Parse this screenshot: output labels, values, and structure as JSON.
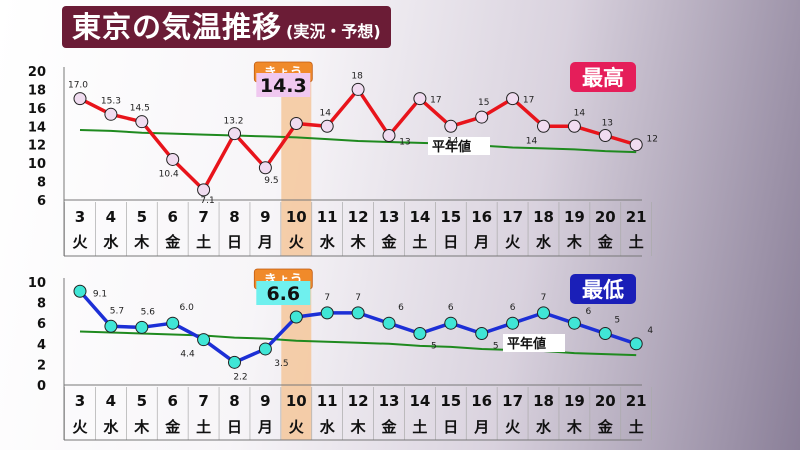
{
  "title": "東京の気温推移",
  "subtitle": "(実況・予想)",
  "chart_data": [
    {
      "type": "line",
      "label": "最高",
      "today_label": "きょう",
      "today_index": 7,
      "today_value_text": "14.3",
      "normal_label": "平年値",
      "yticks": [
        20,
        18,
        16,
        14,
        12,
        10,
        8,
        6
      ],
      "ylim": [
        6,
        20
      ],
      "days": [
        "3",
        "4",
        "5",
        "6",
        "7",
        "8",
        "9",
        "10",
        "11",
        "12",
        "13",
        "14",
        "15",
        "16",
        "17",
        "18",
        "19",
        "20",
        "21"
      ],
      "weekdays": [
        "火",
        "水",
        "木",
        "金",
        "土",
        "日",
        "月",
        "火",
        "水",
        "木",
        "金",
        "土",
        "日",
        "月",
        "火",
        "水",
        "木",
        "金",
        "土"
      ],
      "series": [
        {
          "values": [
            17.0,
            15.3,
            14.5,
            10.4,
            7.1,
            13.2,
            9.5,
            14.3,
            14,
            18,
            13,
            17,
            14,
            15,
            17,
            14,
            14,
            13,
            12
          ],
          "labels": [
            "17.0",
            "15.3",
            "14.5",
            "10.4",
            "7.1",
            "13.2",
            "9.5",
            "",
            "14",
            "18",
            "13",
            "17",
            "14",
            "15",
            "17",
            "14",
            "14",
            "13",
            "12"
          ]
        },
        {
          "values": [
            13.6,
            13.5,
            13.3,
            13.2,
            13.1,
            13.0,
            12.9,
            12.8,
            12.6,
            12.4,
            12.3,
            12.2,
            12.1,
            11.9,
            11.7,
            11.6,
            11.5,
            11.3,
            11.2
          ]
        }
      ],
      "colors": {
        "line": "#e8141b",
        "marker": "#f0dcf0",
        "normal": "#1f8a1f",
        "badge": "#e51e5a"
      }
    },
    {
      "type": "line",
      "label": "最低",
      "today_label": "きょう",
      "today_index": 7,
      "today_value_text": "6.6",
      "normal_label": "平年値",
      "yticks": [
        10,
        8,
        6,
        4,
        2,
        0
      ],
      "ylim": [
        0,
        10
      ],
      "days": [
        "3",
        "4",
        "5",
        "6",
        "7",
        "8",
        "9",
        "10",
        "11",
        "12",
        "13",
        "14",
        "15",
        "16",
        "17",
        "18",
        "19",
        "20",
        "21"
      ],
      "weekdays": [
        "火",
        "水",
        "木",
        "金",
        "土",
        "日",
        "月",
        "火",
        "水",
        "木",
        "金",
        "土",
        "日",
        "月",
        "火",
        "水",
        "木",
        "金",
        "土"
      ],
      "series": [
        {
          "values": [
            9.1,
            5.7,
            5.6,
            6.0,
            4.4,
            2.2,
            3.5,
            6.6,
            7,
            7,
            6,
            5,
            6,
            5,
            6,
            7,
            6,
            5,
            4
          ],
          "labels": [
            "9.1",
            "5.7",
            "5.6",
            "6.0",
            "4.4",
            "2.2",
            "3.5",
            "",
            "7",
            "7",
            "6",
            "5",
            "6",
            "5",
            "6",
            "7",
            "6",
            "5",
            "4"
          ]
        },
        {
          "values": [
            5.2,
            5.1,
            5.0,
            4.9,
            4.8,
            4.6,
            4.5,
            4.3,
            4.2,
            4.1,
            4.0,
            3.8,
            3.7,
            3.5,
            3.4,
            3.3,
            3.1,
            3.0,
            2.9
          ]
        }
      ],
      "colors": {
        "line": "#1c2fd6",
        "marker": "#40e6d6",
        "normal": "#1f8a1f",
        "badge": "#1a1fb8"
      }
    }
  ]
}
